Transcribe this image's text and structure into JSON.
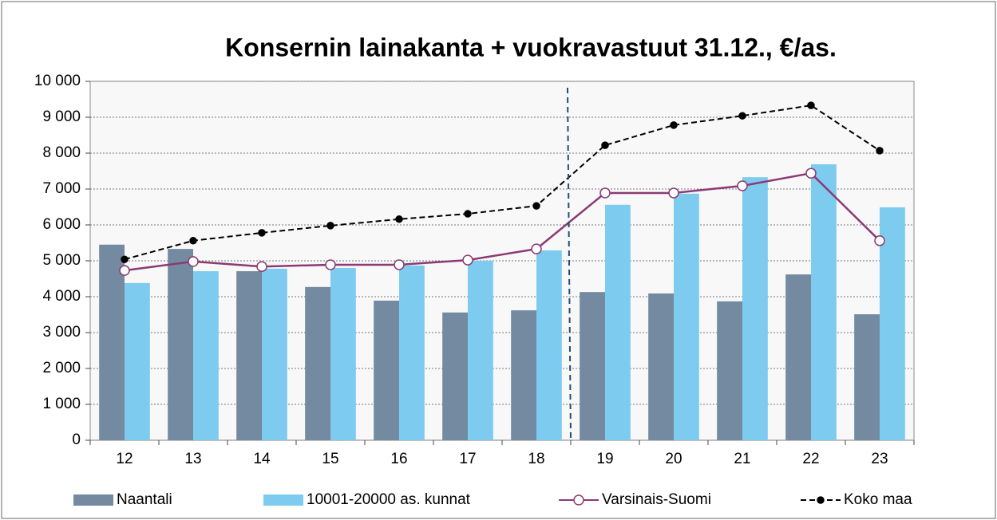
{
  "chart_data": {
    "type": "bar",
    "title": "Konsernin lainakanta + vuokravastuut 31.12., €/as.",
    "categories": [
      "12",
      "13",
      "14",
      "15",
      "16",
      "17",
      "18",
      "19",
      "20",
      "21",
      "22",
      "23"
    ],
    "series": [
      {
        "name": "Naantali",
        "type": "bar",
        "color": "#738aa0",
        "values": [
          5450,
          5330,
          4710,
          4270,
          3890,
          3560,
          3620,
          4130,
          4090,
          3870,
          4620,
          3510
        ]
      },
      {
        "name": "10001-20000 as. kunnat",
        "type": "bar",
        "color": "#7ecbf0",
        "values": [
          4380,
          4710,
          4780,
          4800,
          4870,
          5000,
          5290,
          6560,
          6870,
          7330,
          7690,
          6490
        ]
      },
      {
        "name": "Varsinais-Suomi",
        "type": "line",
        "color": "#8b3a74",
        "marker_fill": "#ffffff",
        "line_style": "solid",
        "values": [
          4730,
          4980,
          4840,
          4890,
          4890,
          5020,
          5330,
          6890,
          6890,
          7090,
          7440,
          5560
        ]
      },
      {
        "name": "Koko maa",
        "type": "line",
        "color": "#000000",
        "marker_fill": "#000000",
        "line_style": "dashed",
        "values": [
          5040,
          5560,
          5780,
          5980,
          6160,
          6310,
          6530,
          8220,
          8780,
          9040,
          9330,
          8070
        ]
      }
    ],
    "ylim": [
      0,
      10000
    ],
    "yticks": [
      0,
      {
        "value": 1000,
        "label": "1 000"
      },
      {
        "value": 2000,
        "label": "2 000"
      },
      {
        "value": 3000,
        "label": "3 000"
      },
      {
        "value": 4000,
        "label": "4 000"
      },
      {
        "value": 5000,
        "label": "5 000"
      },
      {
        "value": 6000,
        "label": "6 000"
      },
      {
        "value": 7000,
        "label": "7 000"
      },
      {
        "value": 8000,
        "label": "8 000"
      },
      {
        "value": 9000,
        "label": "9 000"
      },
      {
        "value": 10000,
        "label": "10 000"
      }
    ],
    "grid": true,
    "legend": "bottom"
  }
}
